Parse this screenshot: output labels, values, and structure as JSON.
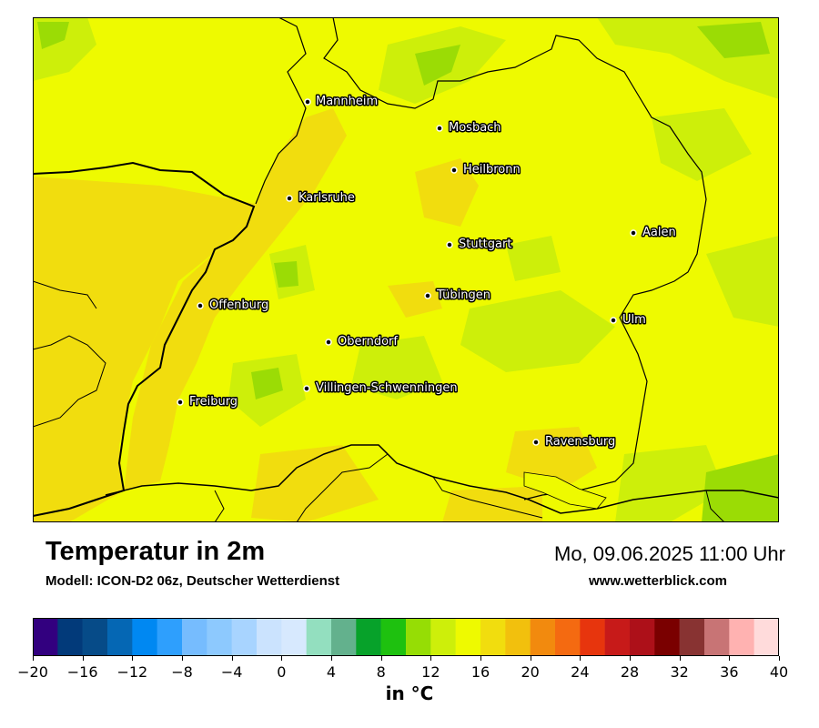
{
  "header": {
    "title": "Temperatur in 2m",
    "subtitle": "Modell: ICON-D2 06z, Deutscher Wetterdienst",
    "datetime": "Mo, 09.06.2025 11:00 Uhr",
    "website": "www.wetterblick.com"
  },
  "map": {
    "cities": [
      {
        "name": "Mannheim"
      },
      {
        "name": "Mosbach"
      },
      {
        "name": "Heilbronn"
      },
      {
        "name": "Karlsruhe"
      },
      {
        "name": "Aalen"
      },
      {
        "name": "Stuttgart"
      },
      {
        "name": "Offenburg"
      },
      {
        "name": "Tübingen"
      },
      {
        "name": "Ulm"
      },
      {
        "name": "Oberndorf"
      },
      {
        "name": "Villingen-Schwenningen"
      },
      {
        "name": "Freiburg"
      },
      {
        "name": "Ravensburg"
      }
    ],
    "colors": {
      "dominant_16_18": "#eefa00",
      "warm_18_20": "#f1dd0e",
      "cool_14_16": "#cdef0a",
      "cool_12_14": "#9bdc05"
    }
  },
  "colorbar": {
    "unit_label": "in °C",
    "tick_labels": [
      "−20",
      "−16",
      "−12",
      "−8",
      "−4",
      "0",
      "4",
      "8",
      "12",
      "16",
      "20",
      "24",
      "28",
      "32",
      "36",
      "40"
    ],
    "colors": [
      "#32007f",
      "#023a7a",
      "#064b88",
      "#0567b4",
      "#0088f2",
      "#2e9ffd",
      "#76bcfe",
      "#8dc9fe",
      "#a8d4ff",
      "#cbe3fe",
      "#d7e9fe",
      "#93dfbf",
      "#63b18d",
      "#07a22a",
      "#1ec10f",
      "#96dd05",
      "#cdef0a",
      "#eefa00",
      "#f1dd0e",
      "#f2c00d",
      "#f28a0e",
      "#f46a11",
      "#e7350d",
      "#c71a19",
      "#ad1019",
      "#7a0000",
      "#883332",
      "#c87475",
      "#ffb2b1",
      "#ffdbdb"
    ]
  }
}
